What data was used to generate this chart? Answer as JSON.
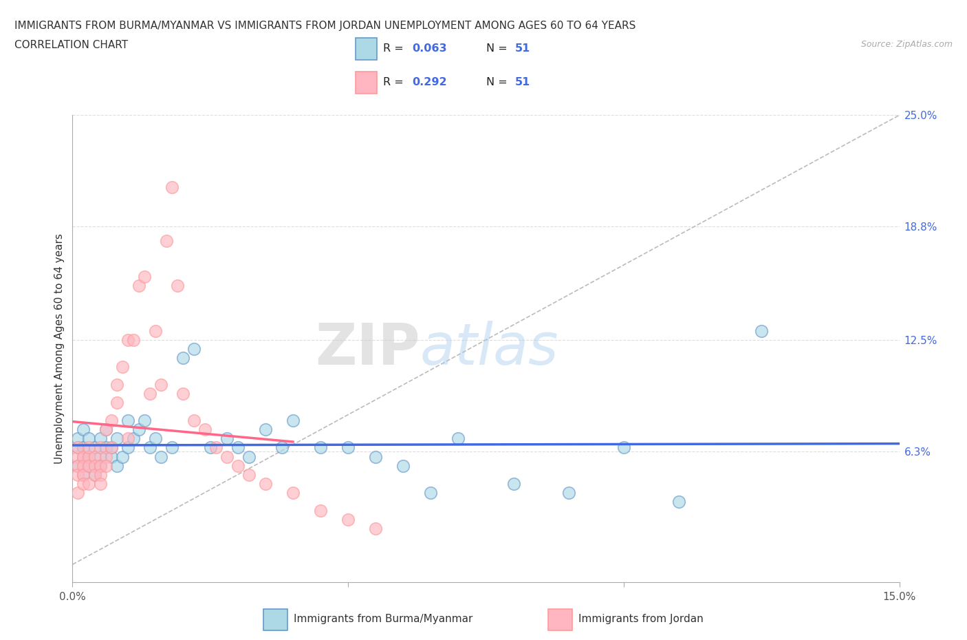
{
  "title_line1": "IMMIGRANTS FROM BURMA/MYANMAR VS IMMIGRANTS FROM JORDAN UNEMPLOYMENT AMONG AGES 60 TO 64 YEARS",
  "title_line2": "CORRELATION CHART",
  "source_text": "Source: ZipAtlas.com",
  "ylabel": "Unemployment Among Ages 60 to 64 years",
  "xlim": [
    0.0,
    0.15
  ],
  "ylim": [
    -0.01,
    0.25
  ],
  "color_burma_fill": "#ADD8E6",
  "color_burma_edge": "#6699CC",
  "color_jordan_fill": "#FFB6C1",
  "color_jordan_edge": "#FF9999",
  "color_trend_burma": "#4169E1",
  "color_trend_jordan": "#FF6688",
  "legend_R_burma": "0.063",
  "legend_N_burma": "51",
  "legend_R_jordan": "0.292",
  "legend_N_jordan": "51",
  "legend_label_burma": "Immigrants from Burma/Myanmar",
  "legend_label_jordan": "Immigrants from Jordan",
  "watermark": "ZIPatlas",
  "right_ytick_labels": [
    "6.3%",
    "12.5%",
    "18.8%",
    "25.0%"
  ],
  "right_ytick_values": [
    0.063,
    0.125,
    0.188,
    0.25
  ],
  "burma_x": [
    0.001,
    0.001,
    0.001,
    0.002,
    0.002,
    0.002,
    0.002,
    0.003,
    0.003,
    0.003,
    0.004,
    0.004,
    0.005,
    0.005,
    0.005,
    0.006,
    0.006,
    0.007,
    0.007,
    0.008,
    0.008,
    0.009,
    0.01,
    0.01,
    0.011,
    0.012,
    0.013,
    0.014,
    0.015,
    0.016,
    0.018,
    0.02,
    0.022,
    0.025,
    0.028,
    0.03,
    0.032,
    0.035,
    0.038,
    0.04,
    0.045,
    0.05,
    0.055,
    0.06,
    0.065,
    0.07,
    0.08,
    0.09,
    0.1,
    0.11,
    0.125
  ],
  "burma_y": [
    0.055,
    0.065,
    0.07,
    0.05,
    0.06,
    0.065,
    0.075,
    0.06,
    0.07,
    0.055,
    0.05,
    0.065,
    0.06,
    0.07,
    0.055,
    0.065,
    0.075,
    0.06,
    0.065,
    0.055,
    0.07,
    0.06,
    0.065,
    0.08,
    0.07,
    0.075,
    0.08,
    0.065,
    0.07,
    0.06,
    0.065,
    0.115,
    0.12,
    0.065,
    0.07,
    0.065,
    0.06,
    0.075,
    0.065,
    0.08,
    0.065,
    0.065,
    0.06,
    0.055,
    0.04,
    0.07,
    0.045,
    0.04,
    0.065,
    0.035,
    0.13
  ],
  "jordan_x": [
    0.001,
    0.001,
    0.001,
    0.001,
    0.001,
    0.002,
    0.002,
    0.002,
    0.002,
    0.003,
    0.003,
    0.003,
    0.003,
    0.004,
    0.004,
    0.004,
    0.005,
    0.005,
    0.005,
    0.005,
    0.006,
    0.006,
    0.006,
    0.007,
    0.007,
    0.008,
    0.008,
    0.009,
    0.01,
    0.01,
    0.011,
    0.012,
    0.013,
    0.014,
    0.015,
    0.016,
    0.017,
    0.018,
    0.019,
    0.02,
    0.022,
    0.024,
    0.026,
    0.028,
    0.03,
    0.032,
    0.035,
    0.04,
    0.045,
    0.05,
    0.055
  ],
  "jordan_y": [
    0.06,
    0.055,
    0.065,
    0.04,
    0.05,
    0.06,
    0.055,
    0.05,
    0.045,
    0.06,
    0.065,
    0.055,
    0.045,
    0.06,
    0.055,
    0.05,
    0.065,
    0.055,
    0.05,
    0.045,
    0.06,
    0.055,
    0.075,
    0.065,
    0.08,
    0.09,
    0.1,
    0.11,
    0.125,
    0.07,
    0.125,
    0.155,
    0.16,
    0.095,
    0.13,
    0.1,
    0.18,
    0.21,
    0.155,
    0.095,
    0.08,
    0.075,
    0.065,
    0.06,
    0.055,
    0.05,
    0.045,
    0.04,
    0.03,
    0.025,
    0.02
  ]
}
